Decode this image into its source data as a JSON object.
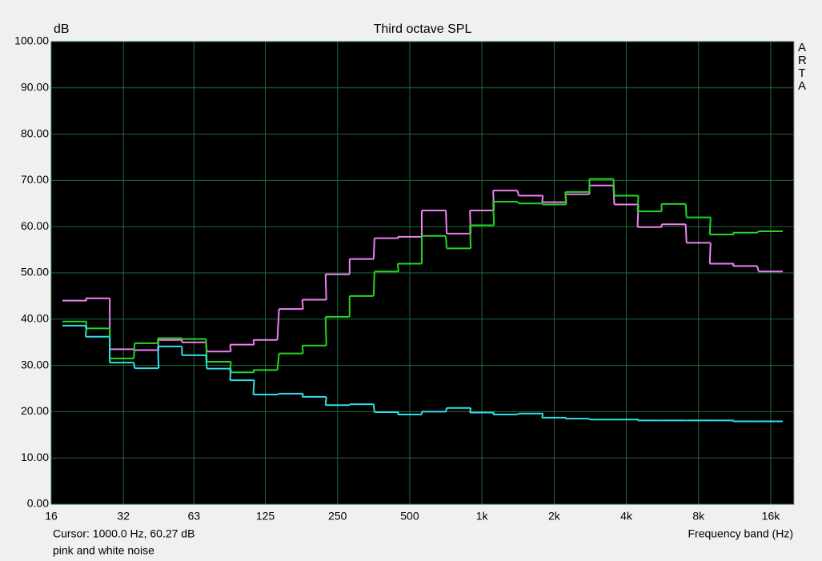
{
  "chart_data": {
    "type": "line",
    "step": "mid",
    "title": "Third octave SPL",
    "y_label": "dB",
    "x_label": "Frequency band (Hz)",
    "watermark": "ARTA",
    "cursor": "Cursor:  1000.0 Hz, 60.27 dB",
    "note": "pink and white noise",
    "log_x": true,
    "grid": true,
    "x": [
      20,
      25,
      31.5,
      40,
      50,
      63,
      80,
      100,
      125,
      160,
      200,
      250,
      315,
      400,
      500,
      630,
      800,
      1000,
      1250,
      1600,
      2000,
      2500,
      3150,
      4000,
      5000,
      6300,
      8000,
      10000,
      12500,
      16000
    ],
    "series": [
      {
        "color": "#f080f0",
        "values": [
          44,
          44.5,
          33.5,
          33.3,
          35.5,
          35,
          33,
          34.5,
          35.5,
          42.2,
          44.2,
          49.7,
          53,
          57.5,
          57.8,
          63.5,
          58.5,
          63.5,
          67.8,
          66.7,
          65.3,
          67,
          68.9,
          64.8,
          59.9,
          60.5,
          56.5,
          52,
          51.5,
          50.3
        ]
      },
      {
        "color": "#22d822",
        "values": [
          39.5,
          38,
          31.5,
          34.8,
          35.9,
          35.7,
          30.8,
          28.5,
          29,
          32.6,
          34.3,
          40.5,
          45,
          50.3,
          52,
          58,
          55.3,
          60.3,
          65.4,
          65,
          64.8,
          67.5,
          70.3,
          66.7,
          63.3,
          64.9,
          62,
          58.3,
          58.7,
          59
        ]
      },
      {
        "color": "#30e0e8",
        "values": [
          38.6,
          36.2,
          30.6,
          29.4,
          34.1,
          32.2,
          29.3,
          26.8,
          23.7,
          23.9,
          23.2,
          21.4,
          21.6,
          19.9,
          19.4,
          20,
          20.8,
          19.8,
          19.4,
          19.6,
          18.7,
          18.5,
          18.3,
          18.3,
          18.1,
          18.1,
          18.1,
          18.1,
          17.9,
          17.9
        ]
      }
    ],
    "xlim": [
      16,
      20000
    ],
    "ylim": [
      0,
      100
    ],
    "xticks": [
      16,
      32,
      63,
      125,
      250,
      500,
      {
        "value": 1000,
        "label": "1k"
      },
      {
        "value": 2000,
        "label": "2k"
      },
      {
        "value": 4000,
        "label": "4k"
      },
      {
        "value": 8000,
        "label": "8k"
      },
      {
        "value": 16000,
        "label": "16k"
      }
    ],
    "yticks": [
      {
        "value": 0,
        "label": "0.00"
      },
      {
        "value": 10,
        "label": "10.00"
      },
      {
        "value": 20,
        "label": "20.00"
      },
      {
        "value": 30,
        "label": "30.00"
      },
      {
        "value": 40,
        "label": "40.00"
      },
      {
        "value": 50,
        "label": "50.00"
      },
      {
        "value": 60,
        "label": "60.00"
      },
      {
        "value": 70,
        "label": "70.00"
      },
      {
        "value": 80,
        "label": "80.00"
      },
      {
        "value": 90,
        "label": "90.00"
      },
      {
        "value": 100,
        "label": "100.00"
      }
    ]
  }
}
